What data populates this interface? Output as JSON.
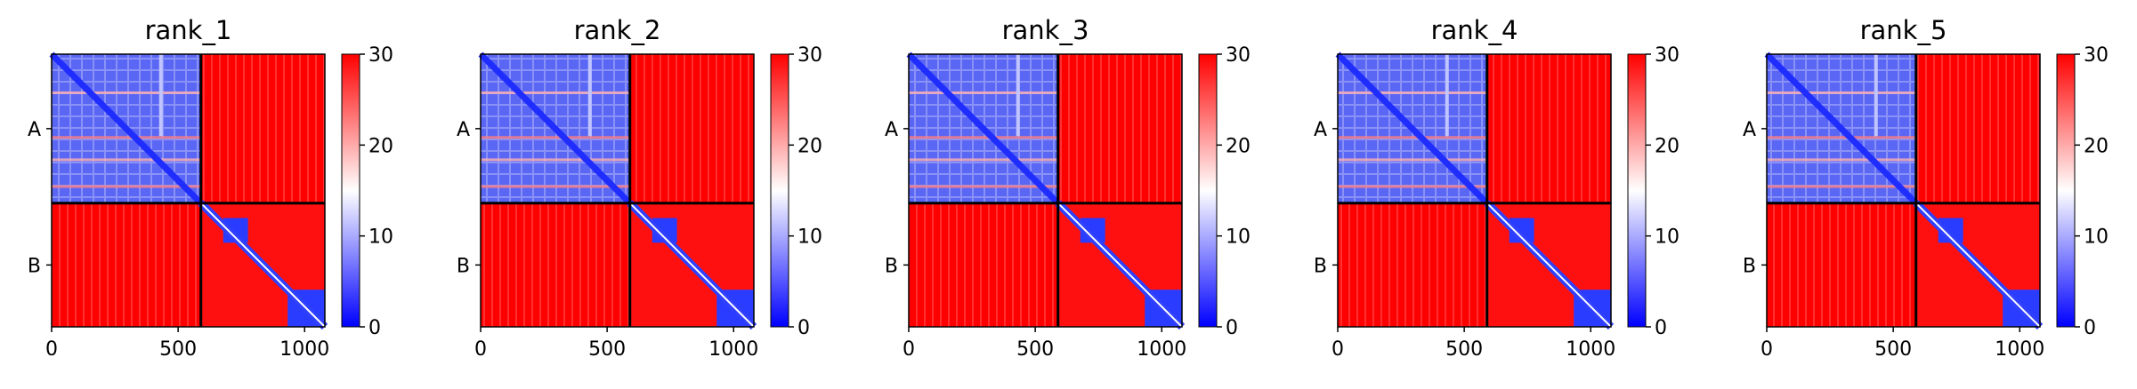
{
  "chart_data": {
    "type": "heatmap",
    "colormap": {
      "low": "#0000ff",
      "mid": "#ffffff",
      "high": "#ff0000"
    },
    "value_range": [
      0,
      30
    ],
    "colorbar_ticks": [
      "0",
      "10",
      "20",
      "30"
    ],
    "x_ticks": [
      "0",
      "500",
      "1000"
    ],
    "x_tick_values": [
      0,
      500,
      1000
    ],
    "x_range": [
      0,
      1080
    ],
    "y_range": [
      1080,
      0
    ],
    "chain_boundary": 590,
    "chains": [
      {
        "label": "A",
        "start": 0,
        "end": 590
      },
      {
        "label": "B",
        "start": 590,
        "end": 1080
      }
    ],
    "panels": [
      {
        "title": "rank_1"
      },
      {
        "title": "rank_2"
      },
      {
        "title": "rank_3"
      },
      {
        "title": "rank_4"
      },
      {
        "title": "rank_5"
      }
    ]
  }
}
